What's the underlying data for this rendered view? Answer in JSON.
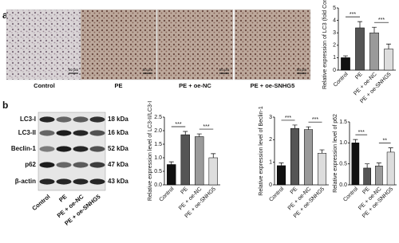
{
  "panel_a": {
    "label": "a",
    "images": [
      {
        "caption": "Control",
        "scale": "50 μm"
      },
      {
        "caption": "PE",
        "scale": "50 μm"
      },
      {
        "caption": "PE + oe-NC",
        "scale": "50 μm"
      },
      {
        "caption": "PE + oe-SNHG5",
        "scale": "50 μm"
      }
    ]
  },
  "panel_b": {
    "label": "b",
    "blot_rows": [
      {
        "protein": "LC3-I",
        "size": "18 kDa"
      },
      {
        "protein": "LC3-II",
        "size": "16 kDa"
      },
      {
        "protein": "Beclin-1",
        "size": "52 kDa"
      },
      {
        "protein": "p62",
        "size": "47 kDa"
      },
      {
        "protein": "β-actin",
        "size": "43 kDa"
      }
    ],
    "lanes": [
      "Control",
      "PE",
      "PE + oe-NC",
      "PE + oe-SNHG5"
    ]
  },
  "chart_data": [
    {
      "type": "bar",
      "y_label": "Relative expression of LC3 (fold Control)",
      "categories": [
        "Control",
        "PE",
        "PE + oe-NC",
        "PE + oe-SNHG5"
      ],
      "colors": [
        "#111111",
        "#555555",
        "#9a9a9a",
        "#dddddd"
      ],
      "values": [
        1.0,
        3.4,
        3.0,
        1.7
      ],
      "errors": [
        0.15,
        0.5,
        0.45,
        0.4
      ],
      "ylim": [
        0,
        5
      ],
      "yticks": [
        0,
        1,
        2,
        3,
        4,
        5
      ],
      "annotations": [
        "***",
        "***"
      ]
    },
    {
      "type": "bar",
      "y_label": "Relative expression level of LC3-II/LC3-I",
      "categories": [
        "Control",
        "PE",
        "PE + oe-NC",
        "PE + oe-SNHG5"
      ],
      "colors": [
        "#111111",
        "#555555",
        "#9a9a9a",
        "#dddddd"
      ],
      "values": [
        0.75,
        1.85,
        1.78,
        1.0
      ],
      "errors": [
        0.1,
        0.12,
        0.1,
        0.15
      ],
      "ylim": [
        0,
        2.5
      ],
      "yticks": [
        {
          "value": 0,
          "label": "0.0"
        },
        0.5,
        {
          "value": 1,
          "label": "1.0"
        },
        1.5,
        {
          "value": 2,
          "label": "2.0"
        },
        2.5
      ],
      "annotations": [
        "***",
        "***"
      ]
    },
    {
      "type": "bar",
      "y_label": "Relative expression level of Beclin-1",
      "categories": [
        "Control",
        "PE",
        "PE + oe-NC",
        "PE + oe-SNHG5"
      ],
      "colors": [
        "#111111",
        "#555555",
        "#9a9a9a",
        "#dddddd"
      ],
      "values": [
        0.85,
        2.5,
        2.45,
        1.4
      ],
      "errors": [
        0.12,
        0.15,
        0.12,
        0.15
      ],
      "ylim": [
        0,
        3
      ],
      "yticks": [
        0,
        1,
        2,
        3
      ],
      "annotations": [
        "***",
        "***"
      ]
    },
    {
      "type": "bar",
      "y_label": "Relative expression level of p62",
      "categories": [
        "Control",
        "PE",
        "PE + oe-NC",
        "PE + oe-SNHG5"
      ],
      "colors": [
        "#111111",
        "#555555",
        "#9a9a9a",
        "#dddddd"
      ],
      "values": [
        1.0,
        0.4,
        0.45,
        0.78
      ],
      "errors": [
        0.08,
        0.1,
        0.07,
        0.1
      ],
      "ylim": [
        0,
        1.5
      ],
      "yticks": [
        {
          "value": 0,
          "label": "0.0"
        },
        0.5,
        {
          "value": 1,
          "label": "1.0"
        },
        1.5
      ],
      "annotations": [
        "***",
        "**"
      ]
    }
  ]
}
